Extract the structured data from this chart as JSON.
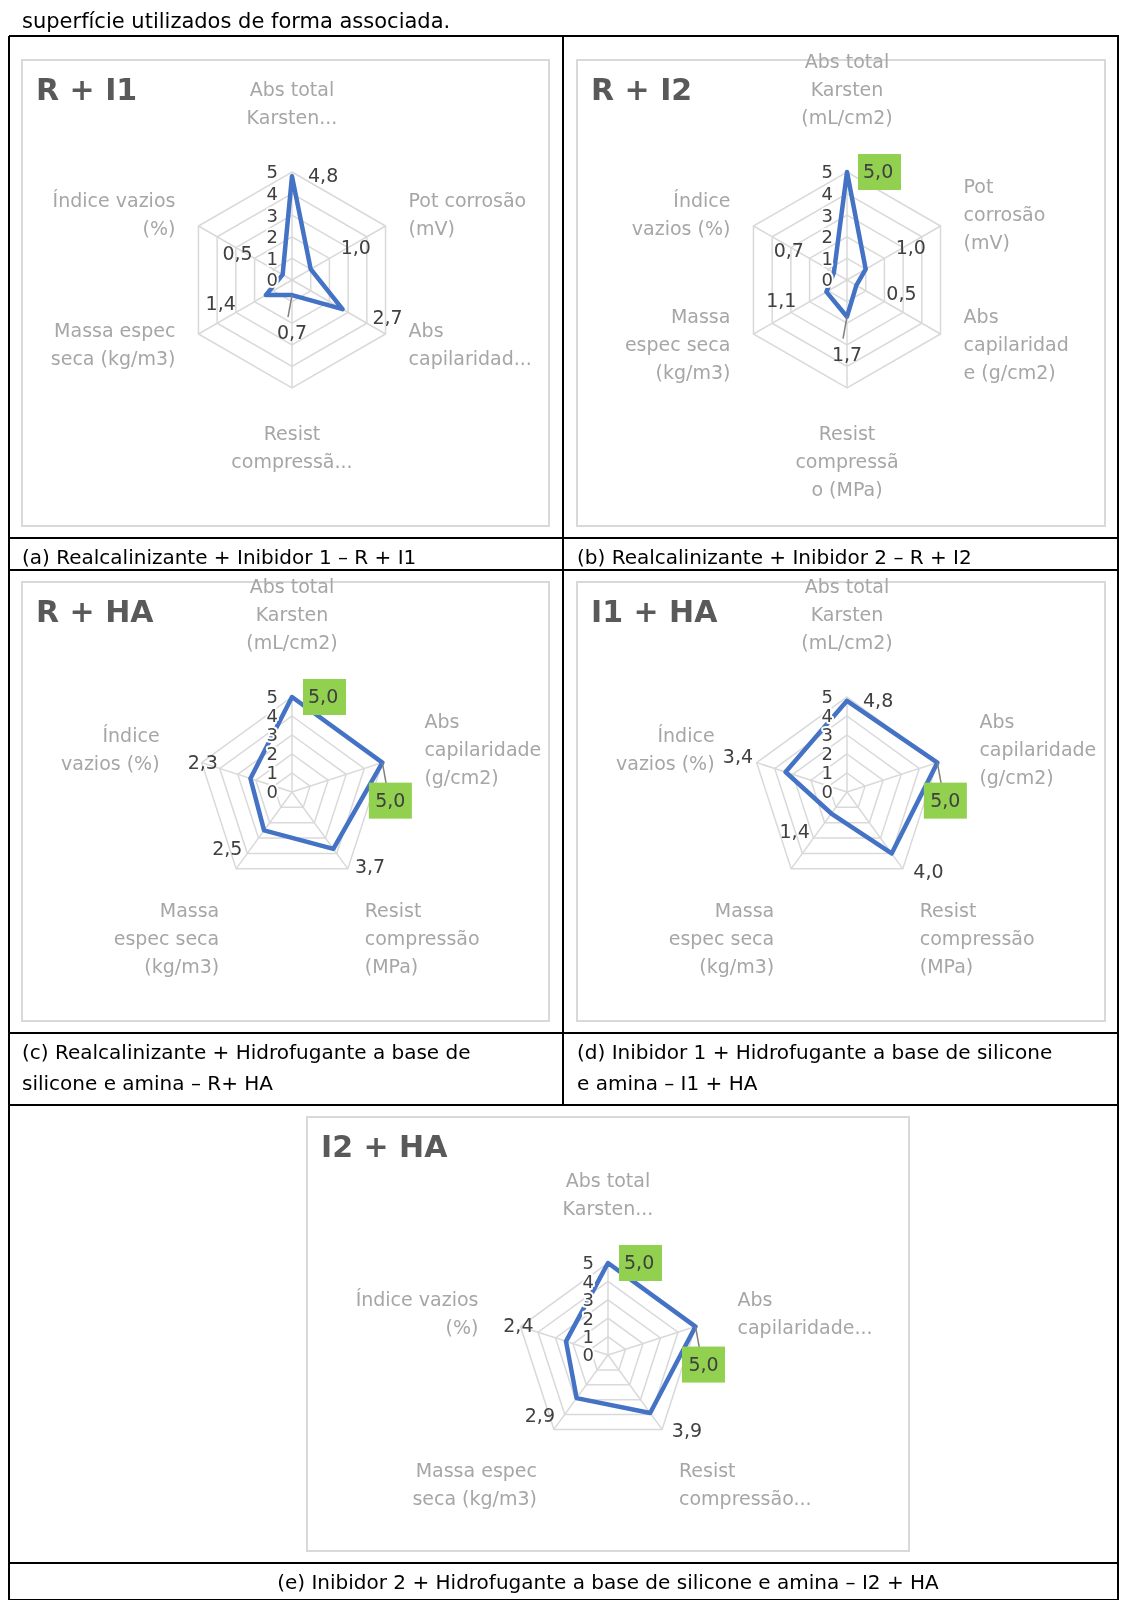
{
  "chart_data": [
    {
      "type": "radar",
      "title": "R + I1",
      "categories": [
        "Abs total\nKarsten...",
        "Pot corrosão\n(mV)",
        "Abs\ncapilaridad...",
        "Resist\ncompressã...",
        "Massa espec\nseca (kg/m3)",
        "Índice vazios\n(%)"
      ],
      "series": [
        {
          "color": "#4472c4",
          "values": [
            4.8,
            1.0,
            2.7,
            0.7,
            1.4,
            0.5
          ],
          "value_labels": [
            "4,8",
            "1,0",
            "2,7",
            "0,7",
            "1,4",
            "0,5"
          ]
        }
      ],
      "ylim": [
        0,
        5
      ],
      "yticks": [
        0,
        1,
        2,
        3,
        4,
        5
      ],
      "grid": true,
      "annotations": [
        "superfície utilizados de forma associada.",
        "(a)  Realcalinizante + Inibidor 1 – R + I1"
      ]
    },
    {
      "type": "radar",
      "title": "R + I2",
      "categories": [
        "Abs total\nKarsten\n(mL/cm2)",
        "Pot\ncorrosão\n(mV)",
        "Abs\ncapilaridad\ne (g/cm2)",
        "Resist\ncompressã\no (MPa)",
        "Massa\nespec seca\n(kg/m3)",
        "Índice\nvazios (%)"
      ],
      "series": [
        {
          "color": "#4472c4",
          "values": [
            5.0,
            1.0,
            0.5,
            1.7,
            1.1,
            0.7
          ],
          "value_labels": [
            "5,0",
            "1,0",
            "0,5",
            "1,7",
            "1,1",
            "0,7"
          ]
        }
      ],
      "ylim": [
        0,
        5
      ],
      "yticks": [
        0,
        1,
        2,
        3,
        4,
        5
      ],
      "grid": true,
      "annotations": [
        "(b)  Realcalinizante + Inibidor 2 – R + I2"
      ]
    },
    {
      "type": "radar",
      "title": "R + HA",
      "categories": [
        "Abs total\nKarsten\n(mL/cm2)",
        "Abs\ncapilaridade\n(g/cm2)",
        "Resist\ncompressão\n(MPa)",
        "Massa\nespec seca\n(kg/m3)",
        "Índice\nvazios (%)"
      ],
      "series": [
        {
          "color": "#4472c4",
          "values": [
            5.0,
            5.0,
            3.7,
            2.5,
            2.3
          ],
          "value_labels": [
            "5,0",
            "5,0",
            "3,7",
            "2,5",
            "2,3"
          ]
        }
      ],
      "ylim": [
        0,
        5
      ],
      "yticks": [
        0,
        1,
        2,
        3,
        4,
        5
      ],
      "grid": true,
      "annotations": [
        "(c)  Realcalinizante + Hidrofugante a base de silicone e amina – R+ HA"
      ]
    },
    {
      "type": "radar",
      "title": "I1 + HA",
      "categories": [
        "Abs total\nKarsten\n(mL/cm2)",
        "Abs\ncapilaridade\n(g/cm2)",
        "Resist\ncompressão\n(MPa)",
        "Massa\nespec seca\n(kg/m3)",
        "Índice\nvazios (%)"
      ],
      "series": [
        {
          "color": "#4472c4",
          "values": [
            4.8,
            5.0,
            4.0,
            1.4,
            3.4
          ],
          "value_labels": [
            "4,8",
            "5,0",
            "4,0",
            "1,4",
            "3,4"
          ]
        }
      ],
      "ylim": [
        0,
        5
      ],
      "yticks": [
        0,
        1,
        2,
        3,
        4,
        5
      ],
      "grid": true,
      "annotations": [
        "(d)  Inibidor 1 + Hidrofugante a base de silicone e amina – I1 + HA"
      ]
    },
    {
      "type": "radar",
      "title": "I2 + HA",
      "categories": [
        "Abs total\nKarsten...",
        "Abs\ncapilaridade...",
        "Resist\ncompressão...",
        "Massa espec\nseca (kg/m3)",
        "Índice vazios\n(%)"
      ],
      "series": [
        {
          "color": "#4472c4",
          "values": [
            5.0,
            5.0,
            3.9,
            2.9,
            2.4
          ],
          "value_labels": [
            "5,0",
            "5,0",
            "3,9",
            "2,9",
            "2,4"
          ]
        }
      ],
      "ylim": [
        0,
        5
      ],
      "yticks": [
        0,
        1,
        2,
        3,
        4,
        5
      ],
      "grid": true,
      "annotations": [
        "(e)  Inibidor 2 + Hidrofugante a base de silicone e amina – I2 + HA"
      ]
    }
  ]
}
